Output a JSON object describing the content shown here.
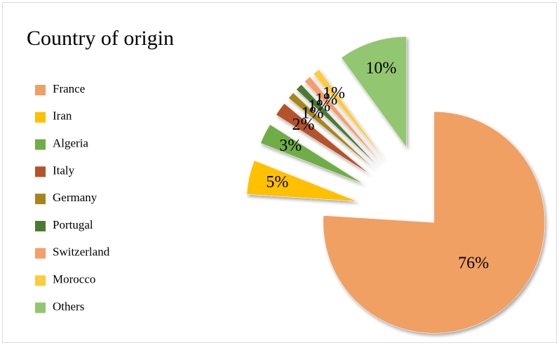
{
  "chart_data": {
    "type": "pie",
    "title": "Country of origin",
    "categories": [
      "France",
      "Iran",
      "Algeria",
      "Italy",
      "Germany",
      "Portugal",
      "Switzerland",
      "Morocco",
      "Others"
    ],
    "values": [
      76,
      5,
      3,
      2,
      1,
      1,
      1,
      1,
      10
    ],
    "value_labels": [
      "76%",
      "5%",
      "3%",
      "2%",
      "1%",
      "1%",
      "1%",
      "1%",
      "10%"
    ],
    "colors": [
      "#f0a064",
      "#ffc000",
      "#70ad47",
      "#b4532a",
      "#a8841c",
      "#4d7a32",
      "#f59e6a",
      "#ffcb3a",
      "#93c671"
    ],
    "legend": "left"
  }
}
